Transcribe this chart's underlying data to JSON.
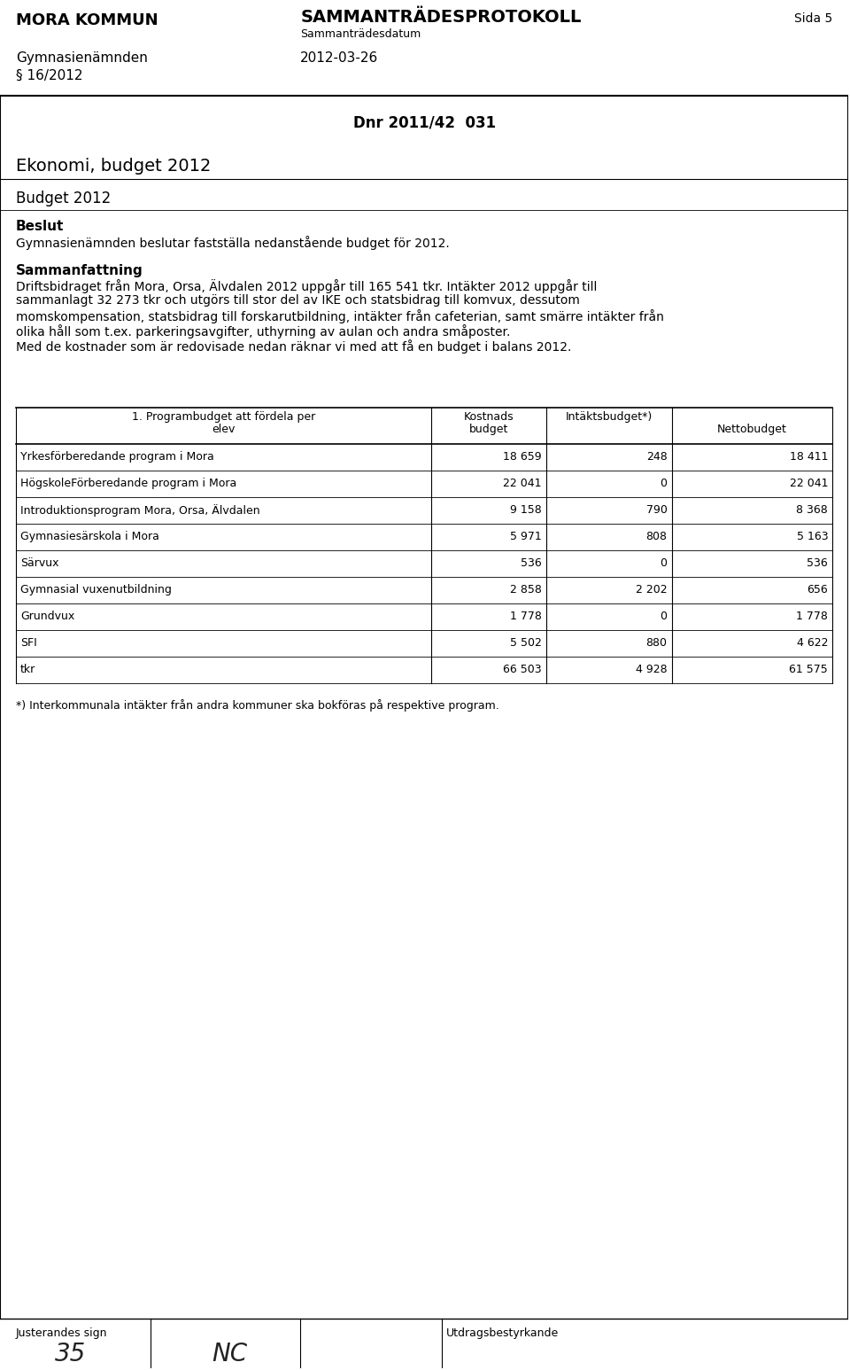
{
  "header_left_line1": "MORA KOMMUN",
  "header_center_line1": "SAMMANTRÄDESPROTOKOLL",
  "header_center_line2": "Sammanträdesdatum",
  "header_right": "Sida 5",
  "left_col1": "Gymnasienämnden",
  "left_col2": "§ 16/2012",
  "center_date": "2012-03-26",
  "dnr": "Dnr 2011/42  031",
  "main_title": "Ekonomi, budget 2012",
  "section_title": "Budget 2012",
  "beslut_label": "Beslut",
  "beslut_text": "Gymnasienämnden beslutar fastställa nedanstående budget för 2012.",
  "sammanfattning_title": "Sammanfattning",
  "sammanfattning_text2": "Med de kostnader som är redovisade nedan räknar vi med att få en budget i balans 2012.",
  "sammanfattning_lines": [
    "Driftsbidraget från Mora, Orsa, Älvdalen 2012 uppgår till 165 541 tkr. Intäkter 2012 uppgår till",
    "sammanlagt 32 273 tkr och utgörs till stor del av IKE och statsbidrag till komvux, dessutom",
    "momskompensation, statsbidrag till forskarutbildning, intäkter från cafeterian, samt smärre intäkter från",
    "olika håll som t.ex. parkeringsavgifter, uthyrning av aulan och andra småposter."
  ],
  "table_col0_header_line1": "1. Programbudget att fördela per",
  "table_col0_header_line2": "elev",
  "table_col1_header_line1": "Kostnads",
  "table_col1_header_line2": "budget",
  "table_col2_header": "Intäktsbudget*)",
  "table_col3_header": "Nettobudget",
  "table_rows": [
    [
      "Yrkesförberedande program i Mora",
      "18 659",
      "248",
      "18 411"
    ],
    [
      "HögskoleFörberedande program i Mora",
      "22 041",
      "0",
      "22 041"
    ],
    [
      "Introduktionsprogram Mora, Orsa, Älvdalen",
      "9 158",
      "790",
      "8 368"
    ],
    [
      "Gymnasiesärskola i Mora",
      "5 971",
      "808",
      "5 163"
    ],
    [
      "Särvux",
      "536",
      "0",
      "536"
    ],
    [
      "Gymnasial vuxenutbildning",
      "2 858",
      "2 202",
      "656"
    ],
    [
      "Grundvux",
      "1 778",
      "0",
      "1 778"
    ],
    [
      "SFI",
      "5 502",
      "880",
      "4 622"
    ],
    [
      "tkr",
      "66 503",
      "4 928",
      "61 575"
    ]
  ],
  "footnote": "*) Interkommunala intäkter från andra kommuner ska bokföras på respektive program.",
  "footer_left": "Justerandes sign",
  "footer_right": "Utdragsbestyrkande",
  "bg_color": "#ffffff",
  "text_color": "#000000"
}
